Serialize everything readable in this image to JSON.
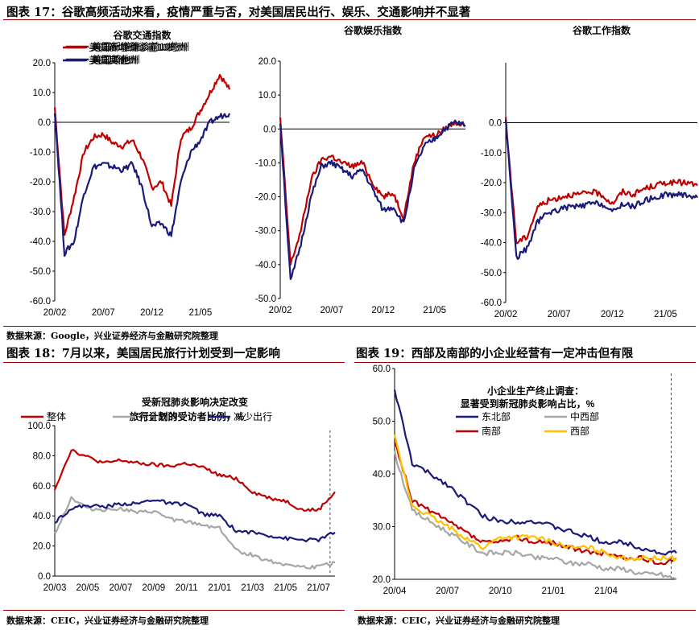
{
  "fig17": {
    "title": "图表 17：谷歌高频活动来看，疫情严重与否，对美国居民出行、娱乐、交通影响并不显著",
    "source": "数据来源：Google，兴业证券经济与金融研究院整理"
  },
  "fig18": {
    "title": "图表 18：7月以来，美国居民旅行计划受到一定影响",
    "source": "数据来源：CEIC，兴业证券经济与金融研究院整理"
  },
  "fig19": {
    "title": "图表 19：西部及南部的小企业经营有一定冲击但有限",
    "source": "数据来源：CEIC，兴业证券经济与金融研究院整理"
  },
  "colors": {
    "red": "#c00000",
    "navy": "#1a1a7a",
    "gray": "#a6a6a6",
    "yellow": "#ffc000",
    "rule": "#9a0000"
  },
  "chart_data": [
    {
      "type": "line",
      "title": "谷歌交通指数",
      "ylim": [
        -60,
        20
      ],
      "yticks": [
        "20.0",
        "10.0",
        "0.0",
        "-10.0",
        "-20.0",
        "-30.0",
        "-40.0",
        "-50.0",
        "-60.0"
      ],
      "xticks": [
        "20/02",
        "20/07",
        "20/12",
        "21/05"
      ],
      "x": [
        "20/02",
        "20/03",
        "20/04",
        "20/05",
        "20/06",
        "20/07",
        "20/08",
        "20/09",
        "20/10",
        "20/11",
        "20/12",
        "21/01",
        "21/02",
        "21/03",
        "21/04",
        "21/05",
        "21/06",
        "21/07",
        "21/08"
      ],
      "series": [
        {
          "name": "美国新增确诊前10的州",
          "color": "red",
          "values": [
            5,
            -38,
            -25,
            -10,
            -5,
            -4,
            -7,
            -8,
            -6,
            -12,
            -22,
            -20,
            -28,
            -5,
            -2,
            4,
            10,
            16,
            11
          ]
        },
        {
          "name": "美国其他州",
          "color": "navy",
          "values": [
            4,
            -44,
            -40,
            -24,
            -15,
            -14,
            -15,
            -16,
            -14,
            -22,
            -35,
            -34,
            -38,
            -20,
            -10,
            -6,
            0,
            2,
            3
          ]
        }
      ]
    },
    {
      "type": "line",
      "title": "谷歌娱乐指数",
      "ylim": [
        -50,
        20
      ],
      "yticks": [
        "20.0",
        "10.0",
        "0.0",
        "-10.0",
        "-20.0",
        "-30.0",
        "-40.0",
        "-50.0"
      ],
      "xticks": [
        "20/02",
        "20/07",
        "20/12",
        "21/05"
      ],
      "x": [
        "20/02",
        "20/03",
        "20/04",
        "20/05",
        "20/06",
        "20/07",
        "20/08",
        "20/09",
        "20/10",
        "20/11",
        "20/12",
        "21/01",
        "21/02",
        "21/03",
        "21/04",
        "21/05",
        "21/06",
        "21/07",
        "21/08"
      ],
      "series": [
        {
          "name": "美国新增确诊前10的州",
          "color": "red",
          "values": [
            3,
            -40,
            -30,
            -15,
            -9,
            -8,
            -10,
            -11,
            -10,
            -16,
            -20,
            -19,
            -26,
            -10,
            -2,
            -2,
            0,
            2,
            1
          ]
        },
        {
          "name": "美国其他州",
          "color": "navy",
          "values": [
            2,
            -45,
            -34,
            -20,
            -11,
            -10,
            -12,
            -14,
            -12,
            -18,
            -24,
            -23,
            -28,
            -12,
            -5,
            -3,
            0,
            2,
            1
          ]
        }
      ]
    },
    {
      "type": "line",
      "title": "谷歌工作指数",
      "ylim": [
        -60,
        20
      ],
      "yticks": [
        "0.0",
        "-10.0",
        "-20.0",
        "-30.0",
        "-40.0",
        "-50.0",
        "-60.0"
      ],
      "xticks": [
        "20/02",
        "20/07",
        "20/12",
        "21/05"
      ],
      "x": [
        "20/02",
        "20/03",
        "20/04",
        "20/05",
        "20/06",
        "20/07",
        "20/08",
        "20/09",
        "20/10",
        "20/11",
        "20/12",
        "21/01",
        "21/02",
        "21/03",
        "21/04",
        "21/05",
        "21/06",
        "21/07",
        "21/08"
      ],
      "series": [
        {
          "name": "美国新增确诊前10的州",
          "color": "red",
          "values": [
            1,
            -40,
            -38,
            -28,
            -26,
            -25,
            -24,
            -24,
            -23,
            -24,
            -27,
            -23,
            -24,
            -22,
            -21,
            -20,
            -20,
            -20,
            -21
          ]
        },
        {
          "name": "美国其他州",
          "color": "navy",
          "values": [
            1,
            -45,
            -42,
            -33,
            -30,
            -29,
            -28,
            -28,
            -27,
            -27,
            -30,
            -27,
            -28,
            -26,
            -25,
            -24,
            -24,
            -24,
            -25
          ]
        }
      ]
    },
    {
      "type": "line",
      "title": "受新冠肺炎影响决定改变",
      "subtitle": "旅行计划的受访者比例，%",
      "ylim": [
        0,
        100
      ],
      "yticks": [
        "100.0",
        "80.0",
        "60.0",
        "40.0",
        "20.0",
        "0.0"
      ],
      "xticks": [
        "20/03",
        "20/05",
        "20/07",
        "20/09",
        "20/11",
        "21/01",
        "21/03",
        "21/05",
        "21/07"
      ],
      "x": [
        "20/03",
        "20/04",
        "20/05",
        "20/06",
        "20/07",
        "20/08",
        "20/09",
        "20/10",
        "20/11",
        "20/12",
        "21/01",
        "21/02",
        "21/03",
        "21/04",
        "21/05",
        "21/06",
        "21/07",
        "21/08"
      ],
      "series": [
        {
          "name": "整体",
          "color": "red",
          "values": [
            58,
            84,
            79,
            75,
            77,
            75,
            74,
            73,
            75,
            72,
            67,
            65,
            56,
            52,
            50,
            44,
            44,
            56
          ]
        },
        {
          "name": "完全取消",
          "color": "gray",
          "values": [
            28,
            52,
            45,
            44,
            45,
            42,
            43,
            38,
            36,
            34,
            32,
            17,
            14,
            10,
            8,
            6,
            6,
            9
          ]
        },
        {
          "name": "减少出行",
          "color": "navy",
          "values": [
            36,
            45,
            47,
            46,
            48,
            48,
            51,
            48,
            48,
            41,
            40,
            30,
            29,
            27,
            25,
            24,
            24,
            29
          ]
        }
      ],
      "marker_at": "21/08"
    },
    {
      "type": "line",
      "title": "小企业生产终止调查：",
      "subtitle": "显著受到新冠肺炎影响占比，%",
      "ylim": [
        20,
        60
      ],
      "yticks": [
        "60.0",
        "50.0",
        "40.0",
        "30.0",
        "20.0"
      ],
      "xticks": [
        "20/04",
        "20/07",
        "20/10",
        "21/01",
        "21/04"
      ],
      "x": [
        "20/04",
        "20/05",
        "20/06",
        "20/07",
        "20/08",
        "20/09",
        "20/10",
        "20/11",
        "20/12",
        "21/01",
        "21/02",
        "21/03",
        "21/04",
        "21/05",
        "21/06",
        "21/07",
        "21/08"
      ],
      "series": [
        {
          "name": "东北部",
          "color": "navy",
          "values": [
            56,
            42,
            40,
            38,
            35,
            32,
            31,
            31,
            31,
            30,
            29,
            28,
            27,
            27,
            26,
            25,
            25
          ]
        },
        {
          "name": "中西部",
          "color": "gray",
          "values": [
            44,
            33,
            31,
            29,
            27,
            25,
            25,
            25,
            24,
            24,
            23,
            23,
            22,
            22,
            21,
            21,
            20
          ]
        },
        {
          "name": "南部",
          "color": "red",
          "values": [
            46,
            35,
            33,
            31,
            29,
            27,
            27,
            28,
            27,
            27,
            26,
            25,
            25,
            24,
            24,
            23,
            24
          ]
        },
        {
          "name": "西部",
          "color": "yellow",
          "values": [
            47,
            34,
            32,
            30,
            28,
            26,
            28,
            28,
            28,
            27,
            26,
            26,
            25,
            24,
            24,
            24,
            24
          ]
        }
      ],
      "marker_at": "21/08"
    }
  ]
}
